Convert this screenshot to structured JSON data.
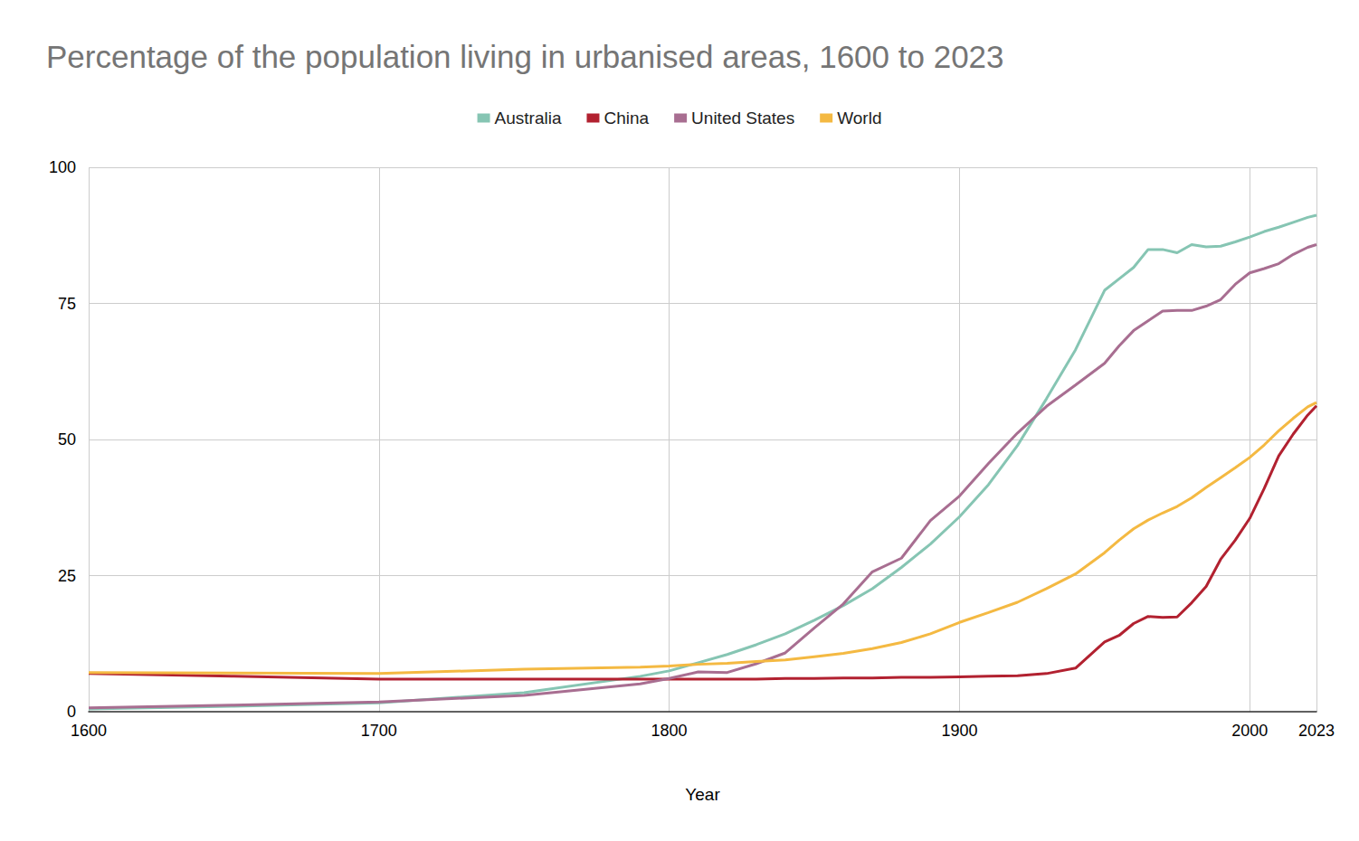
{
  "chart_data": {
    "type": "line",
    "title": "Percentage of the population living in urbanised areas, 1600 to 2023",
    "x_label": "Year",
    "x": [
      1600,
      1650,
      1700,
      1750,
      1790,
      1800,
      1810,
      1820,
      1830,
      1840,
      1850,
      1860,
      1870,
      1880,
      1890,
      1900,
      1910,
      1920,
      1930,
      1940,
      1950,
      1955,
      1960,
      1965,
      1970,
      1975,
      1980,
      1985,
      1990,
      1995,
      2000,
      2005,
      2010,
      2015,
      2020,
      2023
    ],
    "series": [
      {
        "name": "Australia",
        "color": "#86c5b3",
        "values": [
          0.5,
          1.0,
          1.6,
          3.5,
          6.5,
          7.5,
          9.0,
          10.5,
          12.3,
          14.3,
          16.8,
          19.5,
          22.6,
          26.5,
          30.8,
          35.8,
          41.7,
          48.9,
          57.5,
          66.5,
          77.4,
          79.5,
          81.6,
          84.9,
          84.9,
          84.3,
          85.8,
          85.4,
          85.5,
          86.3,
          87.2,
          88.2,
          89.0,
          89.9,
          90.8,
          91.2
        ]
      },
      {
        "name": "China",
        "color": "#b22130",
        "values": [
          7.0,
          6.5,
          6.0,
          6.0,
          6.0,
          6.0,
          6.0,
          6.0,
          6.0,
          6.1,
          6.1,
          6.2,
          6.2,
          6.3,
          6.3,
          6.4,
          6.5,
          6.6,
          7.0,
          8.0,
          12.8,
          14.0,
          16.2,
          17.5,
          17.3,
          17.4,
          20.0,
          23.0,
          28.0,
          31.5,
          35.5,
          41.0,
          47.0,
          51.0,
          54.5,
          56.2
        ]
      },
      {
        "name": "United States",
        "color": "#a86e91",
        "values": [
          0.7,
          1.2,
          1.8,
          3.0,
          5.1,
          6.1,
          7.3,
          7.2,
          8.8,
          10.8,
          15.4,
          19.8,
          25.7,
          28.2,
          35.1,
          39.6,
          45.6,
          51.2,
          56.1,
          60.0,
          64.0,
          67.2,
          70.0,
          71.8,
          73.6,
          73.7,
          73.7,
          74.5,
          75.7,
          78.5,
          80.6,
          81.4,
          82.3,
          84.0,
          85.3,
          85.8
        ]
      },
      {
        "name": "World",
        "color": "#f4b942",
        "values": [
          7.2,
          7.1,
          7.0,
          7.8,
          8.2,
          8.4,
          8.7,
          8.9,
          9.2,
          9.5,
          10.1,
          10.7,
          11.6,
          12.7,
          14.3,
          16.4,
          18.2,
          20.1,
          22.6,
          25.3,
          29.2,
          31.5,
          33.6,
          35.2,
          36.5,
          37.7,
          39.3,
          41.2,
          43.0,
          44.8,
          46.7,
          49.0,
          51.6,
          53.9,
          56.0,
          56.8
        ]
      }
    ],
    "xlim": [
      1600,
      2023
    ],
    "xticks": [
      1600,
      1700,
      1800,
      1900,
      2000
    ],
    "ylim": [
      0,
      100
    ],
    "yticks": [
      0,
      25,
      50,
      75,
      100
    ],
    "grid": true,
    "legend": "top"
  }
}
